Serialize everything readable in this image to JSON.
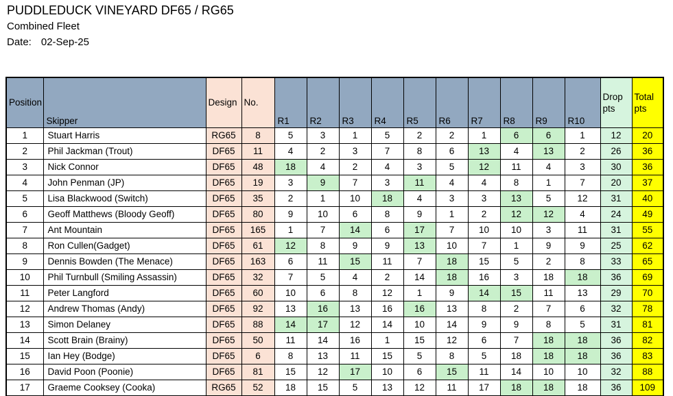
{
  "page": {
    "title": "PUDDLEDUCK VINEYARD DF65 / RG65",
    "subtitle": "Combined Fleet",
    "date_label": "Date:",
    "date_value": "02-Sep-25"
  },
  "colors": {
    "header_blue": "#92A8C0",
    "peach": "#FBE2D5",
    "drop_highlight": "#C9F0CB",
    "drops_column": "#D6F4DE",
    "total_column": "#FFFF00"
  },
  "table": {
    "headers": {
      "position": "Position",
      "skipper": "Skipper",
      "design": "Design",
      "no": "No.",
      "races": [
        "R1",
        "R2",
        "R3",
        "R4",
        "R5",
        "R6",
        "R7",
        "R8",
        "R9",
        "R10"
      ],
      "drops": "Drop pts",
      "total": "Total pts"
    },
    "rows": [
      {
        "position": "1",
        "skipper": "Stuart Harris",
        "design": "RG65",
        "no": "8",
        "races": [
          5,
          3,
          1,
          5,
          2,
          2,
          1,
          6,
          6,
          1
        ],
        "drop_race_indices": [
          7,
          8
        ],
        "drops": 12,
        "total": 20
      },
      {
        "position": "2",
        "skipper": "Phil Jackman (Trout)",
        "design": "DF65",
        "no": "11",
        "races": [
          4,
          2,
          3,
          7,
          8,
          6,
          13,
          4,
          13,
          2
        ],
        "drop_race_indices": [
          6,
          8
        ],
        "drops": 26,
        "total": 36
      },
      {
        "position": "3",
        "skipper": "Nick Connor",
        "design": "DF65",
        "no": "48",
        "races": [
          18,
          4,
          2,
          4,
          3,
          5,
          12,
          11,
          4,
          3
        ],
        "drop_race_indices": [
          0,
          6
        ],
        "drops": 30,
        "total": 36
      },
      {
        "position": "4",
        "skipper": "John Penman (JP)",
        "design": "DF65",
        "no": "19",
        "races": [
          3,
          9,
          7,
          3,
          11,
          4,
          4,
          8,
          1,
          7
        ],
        "drop_race_indices": [
          1,
          4
        ],
        "drops": 20,
        "total": 37
      },
      {
        "position": "5",
        "skipper": "Lisa Blackwood (Switch)",
        "design": "DF65",
        "no": "35",
        "races": [
          2,
          1,
          10,
          18,
          4,
          3,
          3,
          13,
          5,
          12
        ],
        "drop_race_indices": [
          3,
          7
        ],
        "drops": 31,
        "total": 40
      },
      {
        "position": "6",
        "skipper": "Geoff Matthews (Bloody Geoff)",
        "design": "DF65",
        "no": "80",
        "races": [
          9,
          10,
          6,
          8,
          9,
          1,
          2,
          12,
          12,
          4
        ],
        "drop_race_indices": [
          7,
          8
        ],
        "drops": 24,
        "total": 49
      },
      {
        "position": "7",
        "skipper": "Ant Mountain",
        "design": "DF65",
        "no": "165",
        "races": [
          1,
          7,
          14,
          6,
          17,
          7,
          10,
          10,
          3,
          11
        ],
        "drop_race_indices": [
          2,
          4
        ],
        "drops": 31,
        "total": 55
      },
      {
        "position": "8",
        "skipper": "Ron Cullen(Gadget)",
        "design": "DF65",
        "no": "61",
        "races": [
          12,
          8,
          9,
          9,
          13,
          10,
          7,
          1,
          9,
          9
        ],
        "drop_race_indices": [
          0,
          4
        ],
        "drops": 25,
        "total": 62
      },
      {
        "position": "9",
        "skipper": "Dennis Bowden (The Menace)",
        "design": "DF65",
        "no": "163",
        "races": [
          6,
          11,
          15,
          11,
          7,
          18,
          15,
          5,
          2,
          8
        ],
        "drop_race_indices": [
          2,
          5
        ],
        "drops": 33,
        "total": 65
      },
      {
        "position": "10",
        "skipper": "Phil Turnbull (Smiling Assassin)",
        "design": "DF65",
        "no": "32",
        "races": [
          7,
          5,
          4,
          2,
          14,
          18,
          16,
          3,
          18,
          18
        ],
        "drop_race_indices": [
          5,
          9
        ],
        "drops": 36,
        "total": 69
      },
      {
        "position": "11",
        "skipper": "Peter Langford",
        "design": "DF65",
        "no": "60",
        "races": [
          10,
          6,
          8,
          12,
          1,
          9,
          14,
          15,
          11,
          13
        ],
        "drop_race_indices": [
          6,
          7
        ],
        "drops": 29,
        "total": 70
      },
      {
        "position": "12",
        "skipper": "Andrew Thomas (Andy)",
        "design": "DF65",
        "no": "92",
        "races": [
          13,
          16,
          13,
          16,
          16,
          13,
          8,
          2,
          7,
          6
        ],
        "drop_race_indices": [
          1,
          4
        ],
        "drops": 32,
        "total": 78
      },
      {
        "position": "13",
        "skipper": "Simon Delaney",
        "design": "DF65",
        "no": "88",
        "races": [
          14,
          17,
          12,
          14,
          10,
          14,
          9,
          9,
          8,
          5
        ],
        "drop_race_indices": [
          0,
          1
        ],
        "drops": 31,
        "total": 81
      },
      {
        "position": "14",
        "skipper": "Scott Brain (Brainy)",
        "design": "DF65",
        "no": "50",
        "races": [
          11,
          14,
          16,
          1,
          15,
          12,
          6,
          7,
          18,
          18
        ],
        "drop_race_indices": [
          8,
          9
        ],
        "drops": 36,
        "total": 82
      },
      {
        "position": "15",
        "skipper": "Ian Hey (Bodge)",
        "design": "DF65",
        "no": "6",
        "races": [
          8,
          13,
          11,
          15,
          5,
          8,
          5,
          18,
          18,
          18
        ],
        "drop_race_indices": [
          8,
          9
        ],
        "drops": 36,
        "total": 83
      },
      {
        "position": "16",
        "skipper": "David Poon (Poonie)",
        "design": "DF65",
        "no": "81",
        "races": [
          15,
          12,
          17,
          10,
          6,
          15,
          11,
          14,
          10,
          10
        ],
        "drop_race_indices": [
          2,
          5
        ],
        "drops": 32,
        "total": 88
      },
      {
        "position": "17",
        "skipper": "Graeme Cooksey (Cooka)",
        "design": "RG65",
        "no": "52",
        "races": [
          18,
          15,
          5,
          13,
          12,
          11,
          17,
          18,
          18,
          18
        ],
        "drop_race_indices": [
          7,
          8
        ],
        "drops": 36,
        "total": 109
      }
    ]
  }
}
